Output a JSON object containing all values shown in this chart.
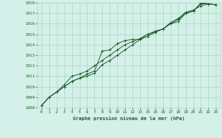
{
  "title": "Graphe pression niveau de la mer (hPa)",
  "xlim": [
    -0.5,
    23.5
  ],
  "ylim": [
    1008,
    1018
  ],
  "xticks": [
    0,
    1,
    2,
    3,
    4,
    5,
    6,
    7,
    8,
    9,
    10,
    11,
    12,
    13,
    14,
    15,
    16,
    17,
    18,
    19,
    20,
    21,
    22,
    23
  ],
  "yticks": [
    1008,
    1009,
    1010,
    1011,
    1012,
    1013,
    1014,
    1015,
    1016,
    1017,
    1018
  ],
  "bg_color": "#d4f0e8",
  "grid_color": "#b0d8c8",
  "line_color": "#1a5c2a",
  "series": [
    [
      1008.2,
      1009.0,
      1009.5,
      1010.0,
      1010.5,
      1010.8,
      1011.2,
      1011.5,
      1013.4,
      1013.5,
      1014.1,
      1014.4,
      1014.5,
      1014.5,
      1014.8,
      1015.2,
      1015.5,
      1016.0,
      1016.2,
      1017.0,
      1017.2,
      1018.0,
      1017.9,
      1017.8
    ],
    [
      1008.2,
      1009.0,
      1009.5,
      1010.2,
      1011.0,
      1011.2,
      1011.5,
      1012.0,
      1012.5,
      1013.0,
      1013.5,
      1014.0,
      1014.3,
      1014.6,
      1015.0,
      1015.2,
      1015.5,
      1016.1,
      1016.5,
      1017.1,
      1017.3,
      1017.7,
      1017.9,
      1017.8
    ],
    [
      1008.2,
      1009.0,
      1009.5,
      1010.0,
      1010.5,
      1010.8,
      1011.0,
      1011.3,
      1012.1,
      1012.5,
      1013.0,
      1013.5,
      1014.0,
      1014.5,
      1015.0,
      1015.3,
      1015.5,
      1016.0,
      1016.4,
      1017.0,
      1017.2,
      1017.9,
      1017.9,
      1017.8
    ]
  ]
}
